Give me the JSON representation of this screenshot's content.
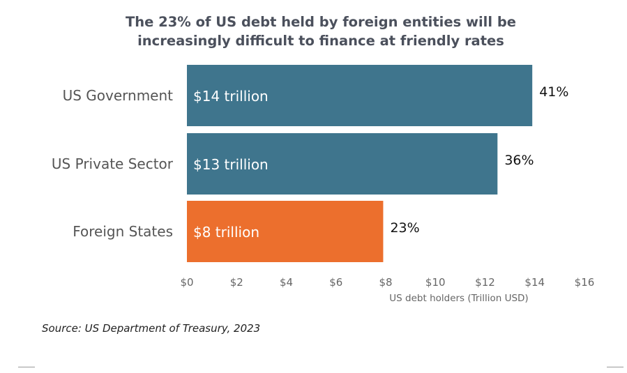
{
  "title_line1": "The 23% of US debt held by foreign entities will be",
  "title_line2": "increasingly difficult to finance at friendly rates",
  "source": "Source: US Department of Treasury, 2023",
  "chart_data": {
    "type": "bar",
    "orientation": "horizontal",
    "title": "The 23% of US debt held by foreign entities will be increasingly difficult to finance at friendly rates",
    "categories": [
      "US Government",
      "US Private Sector",
      "Foreign States"
    ],
    "values": [
      13.9,
      12.5,
      7.9
    ],
    "bar_labels": [
      "$14 trillion",
      "$13 trillion",
      "$8 trillion"
    ],
    "percent_labels": [
      "41%",
      "36%",
      "23%"
    ],
    "colors": [
      "#3f758d",
      "#3f758d",
      "#ec6f2d"
    ],
    "xlabel": "US debt holders (Trillion USD)",
    "xlim": [
      0,
      16
    ],
    "xticks": [
      0,
      2,
      4,
      6,
      8,
      10,
      12,
      14,
      16
    ],
    "xtick_labels": [
      "$0",
      "$2",
      "$4",
      "$6",
      "$8",
      "$10",
      "$12",
      "$14",
      "$16"
    ],
    "grid": false,
    "legend": "none"
  }
}
